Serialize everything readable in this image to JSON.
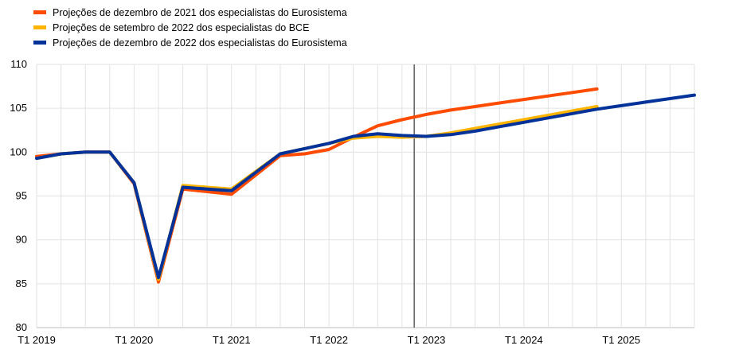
{
  "chart_data": {
    "type": "line",
    "x": [
      "T1 2019",
      "T2 2019",
      "T3 2019",
      "T4 2019",
      "T1 2020",
      "T2 2020",
      "T3 2020",
      "T4 2020",
      "T1 2021",
      "T2 2021",
      "T3 2021",
      "T4 2021",
      "T1 2022",
      "T2 2022",
      "T3 2022",
      "T4 2022",
      "T1 2023",
      "T2 2023",
      "T3 2023",
      "T4 2023",
      "T1 2024",
      "T2 2024",
      "T3 2024",
      "T4 2024",
      "T1 2025",
      "T2 2025",
      "T3 2025",
      "T4 2025"
    ],
    "xticks": [
      "T1 2019",
      "T1 2020",
      "T1 2021",
      "T1 2022",
      "T1 2023",
      "T1 2024",
      "T1 2025"
    ],
    "ylim": [
      80,
      110
    ],
    "yticks": [
      80,
      85,
      90,
      95,
      100,
      105,
      110
    ],
    "grid": true,
    "legend_position": "top-left",
    "vertical_marker": "T4 2022",
    "series": [
      {
        "name": "Projeções de dezembro de 2021 dos especialistas do Eurosistema",
        "color": "#FF4B00",
        "values": [
          99.5,
          99.8,
          100.0,
          100.0,
          96.4,
          85.2,
          95.8,
          95.5,
          95.2,
          97.4,
          99.6,
          99.8,
          100.3,
          101.7,
          103.0,
          103.7,
          104.3,
          104.8,
          105.2,
          105.6,
          106.0,
          106.4,
          106.8,
          107.2,
          null,
          null,
          null,
          null
        ]
      },
      {
        "name": "Projeções de setembro de 2022 dos especialistas do BCE",
        "color": "#FFB400",
        "values": [
          99.3,
          99.8,
          100.0,
          100.0,
          96.5,
          85.5,
          96.2,
          96.0,
          95.8,
          97.8,
          99.8,
          100.4,
          101.0,
          101.6,
          101.8,
          101.7,
          101.8,
          102.2,
          102.7,
          103.2,
          103.7,
          104.2,
          104.7,
          105.2,
          null,
          null,
          null,
          null
        ]
      },
      {
        "name": "Projeções de dezembro de 2022 dos especialistas do Eurosistema",
        "color": "#003299",
        "values": [
          99.3,
          99.8,
          100.0,
          100.0,
          96.5,
          85.7,
          96.0,
          95.8,
          95.6,
          97.7,
          99.8,
          100.4,
          101.0,
          101.8,
          102.1,
          101.9,
          101.8,
          102.0,
          102.4,
          102.9,
          103.4,
          103.9,
          104.4,
          104.9,
          105.3,
          105.7,
          106.1,
          106.5
        ]
      }
    ]
  }
}
